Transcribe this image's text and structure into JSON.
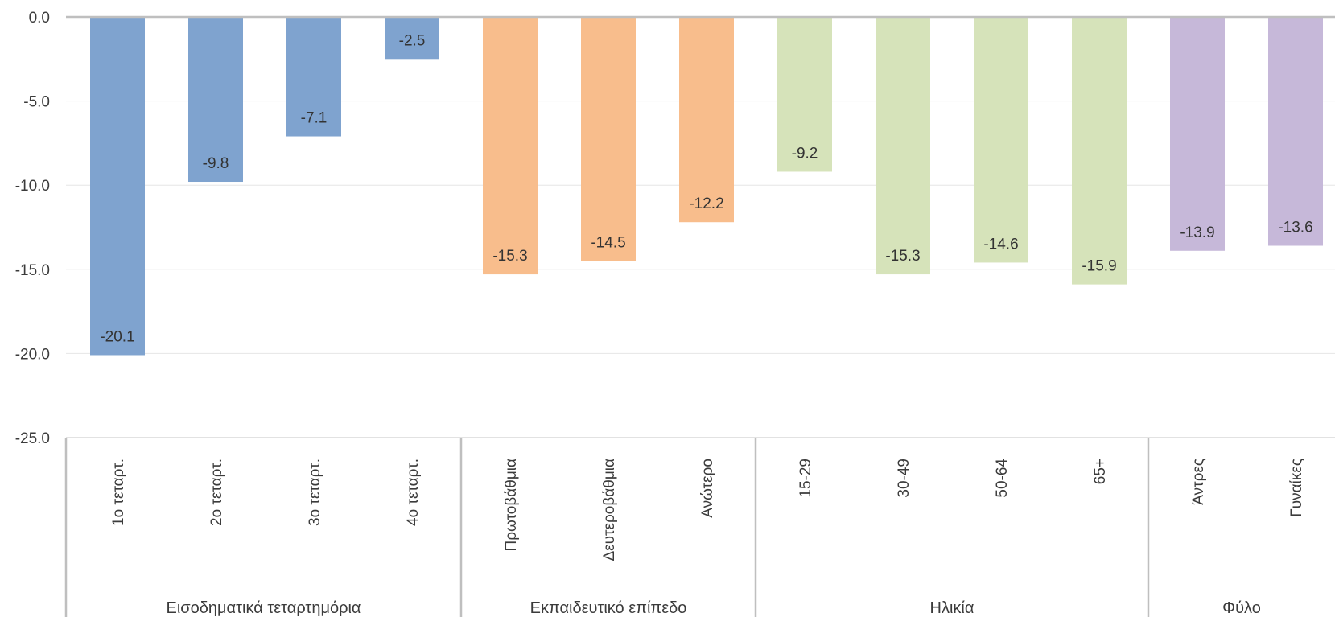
{
  "chart_data": {
    "type": "bar",
    "title": "",
    "xlabel": "",
    "ylabel": "",
    "ylim": [
      -25,
      0
    ],
    "yticks": [
      "0.0",
      "-5.0",
      "-10.0",
      "-15.0",
      "-20.0",
      "-25.0"
    ],
    "ytick_values": [
      0,
      -5,
      -10,
      -15,
      -20,
      -25
    ],
    "grid": true,
    "legend": "none",
    "groups": [
      {
        "name": "Εισοδηματικά τεταρτημόρια",
        "color": "#7FA3CF",
        "categories": [
          "1ο τεταρτ.",
          "2ο τεταρτ.",
          "3ο τεταρτ.",
          "4ο τεταρτ."
        ],
        "values": [
          -20.1,
          -9.8,
          -7.1,
          -2.5
        ],
        "labels": [
          "-20.1",
          "-9.8",
          "-7.1",
          "-2.5"
        ]
      },
      {
        "name": "Εκπαιδευτικό επίπεδο",
        "color": "#F8BD8C",
        "categories": [
          "Πρωτοβάθμια",
          "Δευτεροβάθμια",
          "Ανώτερο"
        ],
        "values": [
          -15.3,
          -14.5,
          -12.2
        ],
        "labels": [
          "-15.3",
          "-14.5",
          "-12.2"
        ]
      },
      {
        "name": "Ηλικία",
        "color": "#D6E3BA",
        "categories": [
          "15-29",
          "30-49",
          "50-64",
          "65+"
        ],
        "values": [
          -9.2,
          -15.3,
          -14.6,
          -15.9
        ],
        "labels": [
          "-9.2",
          "-15.3",
          "-14.6",
          "-15.9"
        ]
      },
      {
        "name": "Φύλο",
        "color": "#C6B8D9",
        "categories": [
          "Άντρες",
          "Γυναίκες"
        ],
        "values": [
          -13.9,
          -13.6
        ],
        "labels": [
          "-13.9",
          "-13.6"
        ]
      }
    ]
  }
}
